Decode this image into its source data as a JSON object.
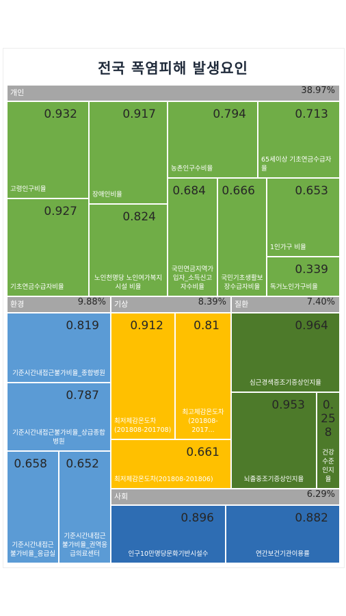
{
  "chart_data": {
    "type": "treemap",
    "title": "전국 폭염피해 발생요인",
    "colors": {
      "개인": "#70ad47",
      "환경": "#5b9bd5",
      "기상": "#ffc000",
      "질환": "#4d7a2a",
      "사회": "#2e6db3",
      "header": "#a6a6a6"
    },
    "groups": [
      {
        "name": "개인",
        "percent": "38.97%",
        "items": [
          {
            "label": "고령인구비율",
            "value": "0.932"
          },
          {
            "label": "기초연금수급자비율",
            "value": "0.927"
          },
          {
            "label": "장애인비율",
            "value": "0.917"
          },
          {
            "label": "노인천명당 노인여가복지시설 비율",
            "value": "0.824"
          },
          {
            "label": "농촌인구수비율",
            "value": "0.794"
          },
          {
            "label": "65세이상 기초연금수급자율",
            "value": "0.713"
          },
          {
            "label": "국민연금지역가입자_소득신고자수비율",
            "value": "0.684"
          },
          {
            "label": "국민기초생활보장수급자비율",
            "value": "0.666"
          },
          {
            "label": "1인가구 비율",
            "value": "0.653"
          },
          {
            "label": "독거노인가구비율",
            "value": "0.339"
          }
        ]
      },
      {
        "name": "환경",
        "percent": "9.88%",
        "items": [
          {
            "label": "기준시간내접근불가비율_종합병원",
            "value": "0.819"
          },
          {
            "label": "기준시간내접근불가비율_상급종합병원",
            "value": "0.787"
          },
          {
            "label": "기준시간내접근불가비율_응급실",
            "value": "0.658"
          },
          {
            "label": "기준시간내접근불가비율_권역응급의료센터",
            "value": "0.652"
          }
        ]
      },
      {
        "name": "기상",
        "percent": "8.39%",
        "items": [
          {
            "label": "최저체감온도차(201808-201708)",
            "value": "0.912"
          },
          {
            "label": "최고체감온도차(201808-2017...",
            "value": "0.81"
          },
          {
            "label": "최저체감온도차(201808-201806)",
            "value": "0.661"
          }
        ]
      },
      {
        "name": "질환",
        "percent": "7.40%",
        "items": [
          {
            "label": "심근경색증조기증상인지율",
            "value": "0.964"
          },
          {
            "label": "뇌졸중조기증상인지율",
            "value": "0.953"
          },
          {
            "label": "건강수준인지율",
            "value": "0.258"
          }
        ]
      },
      {
        "name": "사회",
        "percent": "6.29%",
        "items": [
          {
            "label": "인구10만명당문화기반시설수",
            "value": "0.896"
          },
          {
            "label": "연간보건기관이용률",
            "value": "0.882"
          }
        ]
      }
    ]
  }
}
